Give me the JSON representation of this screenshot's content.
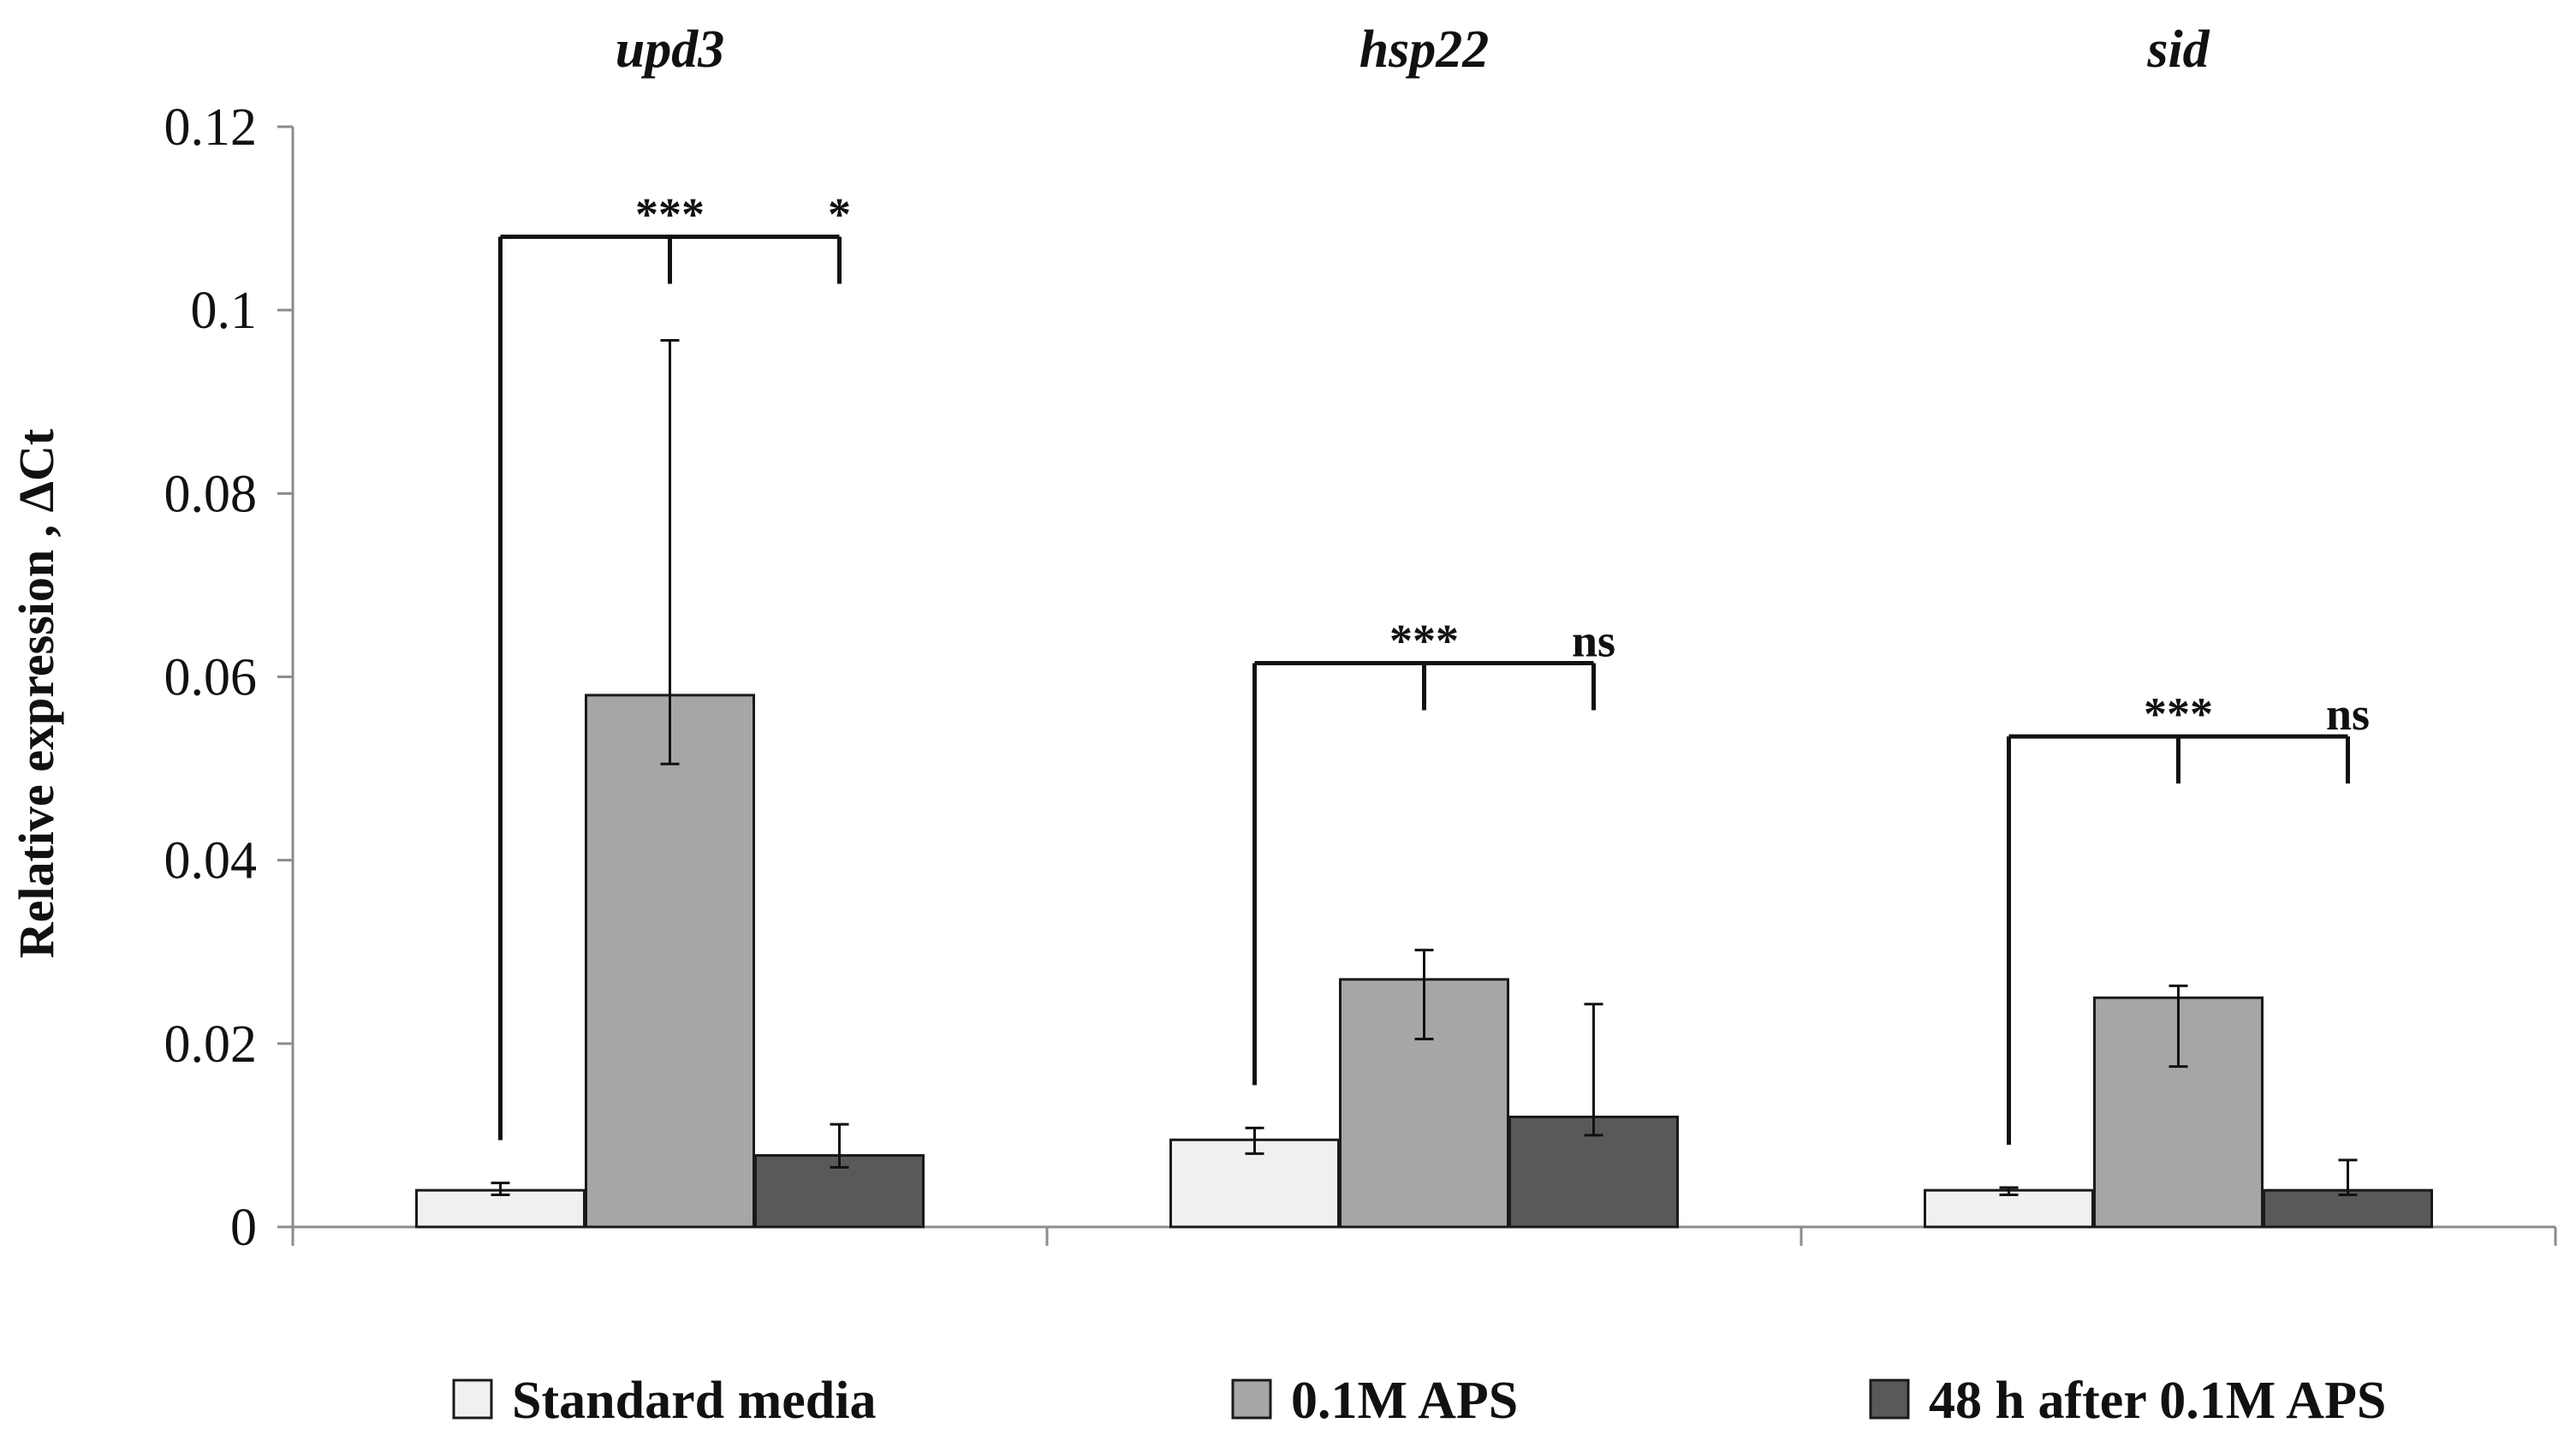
{
  "chart_data": {
    "type": "bar",
    "title": "",
    "xlabel": "",
    "ylabel": "Relative expression , ΔCt",
    "ylim": [
      0,
      0.12
    ],
    "yticks": [
      "0",
      "0.02",
      "0.04",
      "0.06",
      "0.08",
      "0.1",
      "0.12"
    ],
    "ytick_values": [
      0,
      0.02,
      0.04,
      0.06,
      0.08,
      0.1,
      0.12
    ],
    "categories": [
      "upd3",
      "hsp22",
      "sid"
    ],
    "series": [
      {
        "name": "Standard media",
        "color": "#f0f0f0",
        "values": [
          0.004,
          0.0095,
          0.004
        ],
        "err_low": [
          0.0035,
          0.008,
          0.0035
        ],
        "err_high": [
          0.0048,
          0.0108,
          0.0043
        ]
      },
      {
        "name": "0.1M APS",
        "color": "#a6a6a6",
        "values": [
          0.058,
          0.027,
          0.025
        ],
        "err_low": [
          0.0505,
          0.0205,
          0.0175
        ],
        "err_high": [
          0.0967,
          0.0302,
          0.0263
        ]
      },
      {
        "name": "48 h after 0.1M APS",
        "color": "#595959",
        "values": [
          0.0078,
          0.012,
          0.004
        ],
        "err_low": [
          0.0065,
          0.01,
          0.0035
        ],
        "err_high": [
          0.0112,
          0.0243,
          0.0073
        ]
      }
    ],
    "significance": [
      {
        "category": "upd3",
        "bracket_level": 0.108,
        "labels": [
          "***",
          "*"
        ]
      },
      {
        "category": "hsp22",
        "bracket_level": 0.0615,
        "labels": [
          "***",
          "ns"
        ]
      },
      {
        "category": "sid",
        "bracket_level": 0.0535,
        "labels": [
          "***",
          "ns"
        ]
      }
    ],
    "legend_position": "bottom",
    "grid": false
  }
}
